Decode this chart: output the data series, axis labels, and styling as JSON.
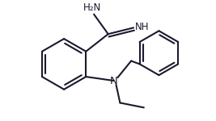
{
  "bg_color": "#ffffff",
  "line_color": "#1a1a2e",
  "line_width": 1.5,
  "font_size": 8.5,
  "figsize": [
    2.67,
    1.5
  ],
  "dpi": 100,
  "NH2_label": "H₂N",
  "NH_label": "NH",
  "N_label": "N"
}
